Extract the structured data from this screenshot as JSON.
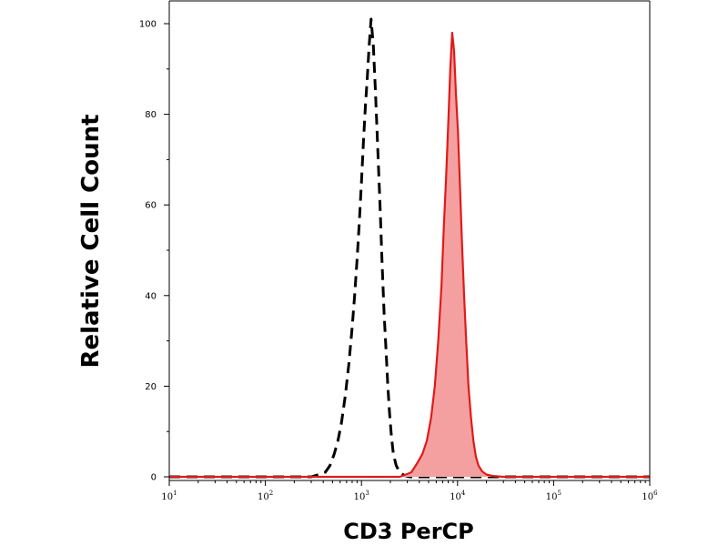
{
  "chart_data": {
    "type": "area",
    "xlabel": "CD3 PerCP",
    "ylabel": "Relative Cell Count",
    "x_scale": "log",
    "xlim": [
      10,
      1000000
    ],
    "ylim": [
      0,
      100
    ],
    "x_ticks": [
      {
        "value": 10,
        "base": "10",
        "exp": "1"
      },
      {
        "value": 100,
        "base": "10",
        "exp": "2"
      },
      {
        "value": 1000,
        "base": "10",
        "exp": "3"
      },
      {
        "value": 10000,
        "base": "10",
        "exp": "4"
      },
      {
        "value": 100000,
        "base": "10",
        "exp": "5"
      },
      {
        "value": 1000000,
        "base": "10",
        "exp": "6"
      }
    ],
    "y_ticks": [
      {
        "value": 0,
        "label": "0"
      },
      {
        "value": 20,
        "label": "20"
      },
      {
        "value": 40,
        "label": "40"
      },
      {
        "value": 60,
        "label": "60"
      },
      {
        "value": 80,
        "label": "80"
      },
      {
        "value": 100,
        "label": "100"
      }
    ],
    "grid": false,
    "series": [
      {
        "key": "control",
        "color": "#000000",
        "style": "dashed",
        "fill": "none",
        "points": [
          [
            8,
            0
          ],
          [
            300,
            0
          ],
          [
            360,
            0.5
          ],
          [
            420,
            1
          ],
          [
            470,
            2.5
          ],
          [
            520,
            5
          ],
          [
            570,
            8
          ],
          [
            620,
            12
          ],
          [
            680,
            18
          ],
          [
            740,
            25
          ],
          [
            800,
            33
          ],
          [
            850,
            40
          ],
          [
            900,
            48
          ],
          [
            950,
            56
          ],
          [
            1000,
            65
          ],
          [
            1050,
            74
          ],
          [
            1100,
            82
          ],
          [
            1150,
            88
          ],
          [
            1200,
            95
          ],
          [
            1260,
            101
          ],
          [
            1330,
            95
          ],
          [
            1400,
            85
          ],
          [
            1480,
            72
          ],
          [
            1560,
            60
          ],
          [
            1640,
            47
          ],
          [
            1720,
            36
          ],
          [
            1800,
            28
          ],
          [
            1880,
            20
          ],
          [
            1960,
            14
          ],
          [
            2050,
            9
          ],
          [
            2150,
            5
          ],
          [
            2300,
            2.5
          ],
          [
            2500,
            1
          ],
          [
            2800,
            0.3
          ],
          [
            3200,
            0
          ],
          [
            1000000,
            0
          ]
        ]
      },
      {
        "key": "stained",
        "color": "#e01a1a",
        "style": "solid",
        "fill": "#f4a0a0",
        "points": [
          [
            8,
            0
          ],
          [
            2500,
            0
          ],
          [
            2900,
            0.5
          ],
          [
            3300,
            1
          ],
          [
            3800,
            3
          ],
          [
            4300,
            5
          ],
          [
            4800,
            8
          ],
          [
            5300,
            13
          ],
          [
            5800,
            20
          ],
          [
            6300,
            30
          ],
          [
            6800,
            42
          ],
          [
            7200,
            55
          ],
          [
            7600,
            66
          ],
          [
            8000,
            78
          ],
          [
            8400,
            90
          ],
          [
            8800,
            98
          ],
          [
            9200,
            94
          ],
          [
            9600,
            85
          ],
          [
            10100,
            76
          ],
          [
            10600,
            64
          ],
          [
            11100,
            52
          ],
          [
            11700,
            40
          ],
          [
            12300,
            30
          ],
          [
            13000,
            20
          ],
          [
            13800,
            13
          ],
          [
            14600,
            8
          ],
          [
            15500,
            4.5
          ],
          [
            16500,
            2.5
          ],
          [
            18000,
            1.2
          ],
          [
            20000,
            0.5
          ],
          [
            23000,
            0.2
          ],
          [
            30000,
            0
          ],
          [
            1000000,
            0
          ]
        ]
      }
    ]
  }
}
